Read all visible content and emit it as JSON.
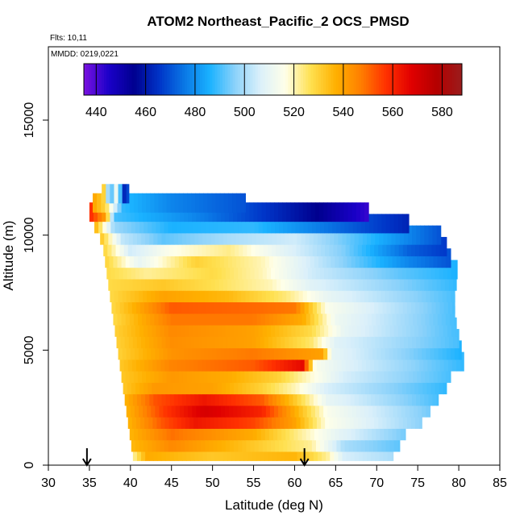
{
  "chart_data": {
    "type": "heatmap",
    "title": "ATOM2 Northeast_Pacific_2 OCS_PMSD",
    "flights_label": "Flts: 10,11",
    "mmdd_label": "MMDD: 0219,0221",
    "xlabel": "Latitude (deg N)",
    "ylabel": "Altitude (m)",
    "xlim": [
      30,
      85
    ],
    "ylim": [
      0,
      17500
    ],
    "x_ticks": [
      "30",
      "35",
      "40",
      "45",
      "50",
      "55",
      "60",
      "65",
      "70",
      "75",
      "80",
      "85"
    ],
    "y_ticks": [
      "0",
      "5000",
      "10000",
      "15000"
    ],
    "colorbar": {
      "min": 435,
      "max": 588,
      "ticks": [
        "440",
        "460",
        "480",
        "500",
        "520",
        "540",
        "560",
        "580"
      ],
      "colors": [
        "#7a12e0",
        "#1a00c8",
        "#00008f",
        "#0035c8",
        "#0a78e6",
        "#1ab2ff",
        "#8cd2fa",
        "#dbf0fa",
        "#ffffe8",
        "#ffe050",
        "#ffb000",
        "#ff7e00",
        "#ff3000",
        "#e00000",
        "#b40000",
        "#9a1c1c"
      ]
    },
    "arrows_latitude": [
      34.7,
      61.2
    ],
    "bands": [
      {
        "alt": 600,
        "lat_min": 40.3,
        "lat_max": 72.0,
        "values": [
          [
            40.3,
            521
          ],
          [
            42,
            538
          ],
          [
            50,
            532
          ],
          [
            60,
            536
          ],
          [
            64,
            522
          ],
          [
            66,
            506
          ],
          [
            72,
            500
          ]
        ]
      },
      {
        "alt": 1000,
        "lat_min": 40.1,
        "lat_max": 72.8,
        "values": [
          [
            40.1,
            535
          ],
          [
            45,
            545
          ],
          [
            55,
            532
          ],
          [
            62,
            522
          ],
          [
            66,
            500
          ],
          [
            72.8,
            492
          ]
        ]
      },
      {
        "alt": 1500,
        "lat_min": 39.9,
        "lat_max": 73.5,
        "values": [
          [
            39.9,
            536
          ],
          [
            45,
            549
          ],
          [
            55,
            538
          ],
          [
            60,
            524
          ],
          [
            65,
            510
          ],
          [
            73.5,
            494
          ]
        ]
      },
      {
        "alt": 2000,
        "lat_min": 39.7,
        "lat_max": 75.5,
        "values": [
          [
            39.7,
            536
          ],
          [
            44,
            553
          ],
          [
            48,
            563
          ],
          [
            55,
            555
          ],
          [
            60,
            540
          ],
          [
            64,
            516
          ],
          [
            75.5,
            496
          ]
        ]
      },
      {
        "alt": 2500,
        "lat_min": 39.5,
        "lat_max": 76.5,
        "values": [
          [
            39.5,
            536
          ],
          [
            44,
            556
          ],
          [
            49,
            570
          ],
          [
            56,
            560
          ],
          [
            60,
            538
          ],
          [
            64,
            515
          ],
          [
            76.5,
            494
          ]
        ]
      },
      {
        "alt": 3000,
        "lat_min": 39.3,
        "lat_max": 77.5,
        "values": [
          [
            39.3,
            536
          ],
          [
            43,
            553
          ],
          [
            49,
            563
          ],
          [
            56,
            552
          ],
          [
            60,
            532
          ],
          [
            64,
            510
          ],
          [
            77.5,
            490
          ]
        ]
      },
      {
        "alt": 3500,
        "lat_min": 39.1,
        "lat_max": 78.5,
        "values": [
          [
            39.1,
            532
          ],
          [
            43,
            542
          ],
          [
            50,
            540
          ],
          [
            56,
            530
          ],
          [
            60,
            520
          ],
          [
            64,
            506
          ],
          [
            78.5,
            488
          ]
        ]
      },
      {
        "alt": 4000,
        "lat_min": 38.9,
        "lat_max": 79.0,
        "values": [
          [
            38.9,
            532
          ],
          [
            45,
            542
          ],
          [
            52,
            538
          ],
          [
            58,
            530
          ],
          [
            62,
            518
          ],
          [
            66,
            506
          ],
          [
            79,
            490
          ]
        ]
      },
      {
        "alt": 4500,
        "lat_min": 38.7,
        "lat_max": 80.6,
        "values": [
          [
            38.7,
            532
          ],
          [
            45,
            546
          ],
          [
            55,
            552
          ],
          [
            61,
            566
          ],
          [
            62.5,
            515
          ],
          [
            66,
            508
          ],
          [
            80.6,
            488
          ]
        ]
      },
      {
        "alt": 5000,
        "lat_min": 38.5,
        "lat_max": 80.3,
        "values": [
          [
            38.5,
            530
          ],
          [
            45,
            543
          ],
          [
            55,
            548
          ],
          [
            63.5,
            540
          ],
          [
            64.5,
            510
          ],
          [
            80.3,
            486
          ]
        ]
      },
      {
        "alt": 5500,
        "lat_min": 38.3,
        "lat_max": 80.0,
        "values": [
          [
            38.3,
            530
          ],
          [
            45,
            544
          ],
          [
            55,
            540
          ],
          [
            62,
            525
          ],
          [
            65,
            508
          ],
          [
            80,
            490
          ]
        ]
      },
      {
        "alt": 6000,
        "lat_min": 38.1,
        "lat_max": 79.7,
        "values": [
          [
            38.1,
            530
          ],
          [
            45,
            545
          ],
          [
            55,
            540
          ],
          [
            62,
            528
          ],
          [
            66,
            510
          ],
          [
            79.7,
            490
          ]
        ]
      },
      {
        "alt": 6500,
        "lat_min": 37.9,
        "lat_max": 79.5,
        "values": [
          [
            37.9,
            528
          ],
          [
            45,
            548
          ],
          [
            55,
            548
          ],
          [
            61,
            538
          ],
          [
            65,
            512
          ],
          [
            79.5,
            490
          ]
        ]
      },
      {
        "alt": 7000,
        "lat_min": 37.7,
        "lat_max": 79.5,
        "values": [
          [
            37.7,
            528
          ],
          [
            45,
            552
          ],
          [
            55,
            550
          ],
          [
            60,
            548
          ],
          [
            64,
            515
          ],
          [
            79.5,
            490
          ]
        ]
      },
      {
        "alt": 7500,
        "lat_min": 37.5,
        "lat_max": 79.5,
        "values": [
          [
            37.5,
            528
          ],
          [
            44,
            540
          ],
          [
            52,
            535
          ],
          [
            59,
            524
          ],
          [
            64,
            510
          ],
          [
            79.5,
            490
          ]
        ]
      },
      {
        "alt": 8000,
        "lat_min": 37.3,
        "lat_max": 79.7,
        "values": [
          [
            37.3,
            528
          ],
          [
            44,
            532
          ],
          [
            50,
            527
          ],
          [
            57,
            520
          ],
          [
            62,
            508
          ],
          [
            79.7,
            488
          ]
        ]
      },
      {
        "alt": 8500,
        "lat_min": 37.1,
        "lat_max": 79.8,
        "values": [
          [
            37.1,
            528
          ],
          [
            42,
            522
          ],
          [
            50,
            528
          ],
          [
            56,
            520
          ],
          [
            62,
            505
          ],
          [
            73,
            492
          ],
          [
            79.8,
            486
          ]
        ]
      },
      {
        "alt": 9000,
        "lat_min": 36.9,
        "lat_max": 79.0,
        "values": [
          [
            36.9,
            530
          ],
          [
            41,
            510
          ],
          [
            48,
            530
          ],
          [
            56,
            520
          ],
          [
            62,
            505
          ],
          [
            74,
            478
          ],
          [
            79,
            470
          ]
        ]
      },
      {
        "alt": 9500,
        "lat_min": 36.7,
        "lat_max": 78.5,
        "values": [
          [
            36.7,
            530
          ],
          [
            40,
            505
          ],
          [
            45,
            516
          ],
          [
            52,
            523
          ],
          [
            58,
            510
          ],
          [
            66,
            495
          ],
          [
            74,
            472
          ],
          [
            78.5,
            466
          ]
        ]
      },
      {
        "alt": 10000,
        "lat_min": 36.3,
        "lat_max": 77.8,
        "values": [
          [
            36.3,
            534
          ],
          [
            39,
            503
          ],
          [
            44,
            492
          ],
          [
            52,
            500
          ],
          [
            60,
            505
          ],
          [
            68,
            490
          ],
          [
            77.8,
            470
          ]
        ]
      },
      {
        "alt": 10500,
        "lat_min": 35.6,
        "lat_max": 73.9,
        "values": [
          [
            35.6,
            538
          ],
          [
            38,
            498
          ],
          [
            45,
            486
          ],
          [
            55,
            488
          ],
          [
            62,
            478
          ],
          [
            73.9,
            462
          ]
        ]
      },
      {
        "alt": 11000,
        "lat_min": 35.0,
        "lat_max": 69.0,
        "values": [
          [
            35.0,
            560
          ],
          [
            37,
            540
          ],
          [
            38,
            490
          ],
          [
            48,
            478
          ],
          [
            56,
            466
          ],
          [
            63,
            455
          ],
          [
            69,
            442
          ]
        ]
      },
      {
        "alt": 11400,
        "lat_min": 35.4,
        "lat_max": 54.0,
        "values": [
          [
            35.4,
            540
          ],
          [
            37,
            528
          ],
          [
            39,
            488
          ],
          [
            45,
            478
          ],
          [
            54,
            470
          ]
        ]
      },
      {
        "alt": 11800,
        "lat_min": 36.5,
        "lat_max": 39.8,
        "values": [
          [
            36.5,
            545
          ],
          [
            37.5,
            484
          ],
          [
            38.5,
            520
          ],
          [
            39,
            460
          ],
          [
            39.8,
            470
          ]
        ]
      }
    ]
  }
}
